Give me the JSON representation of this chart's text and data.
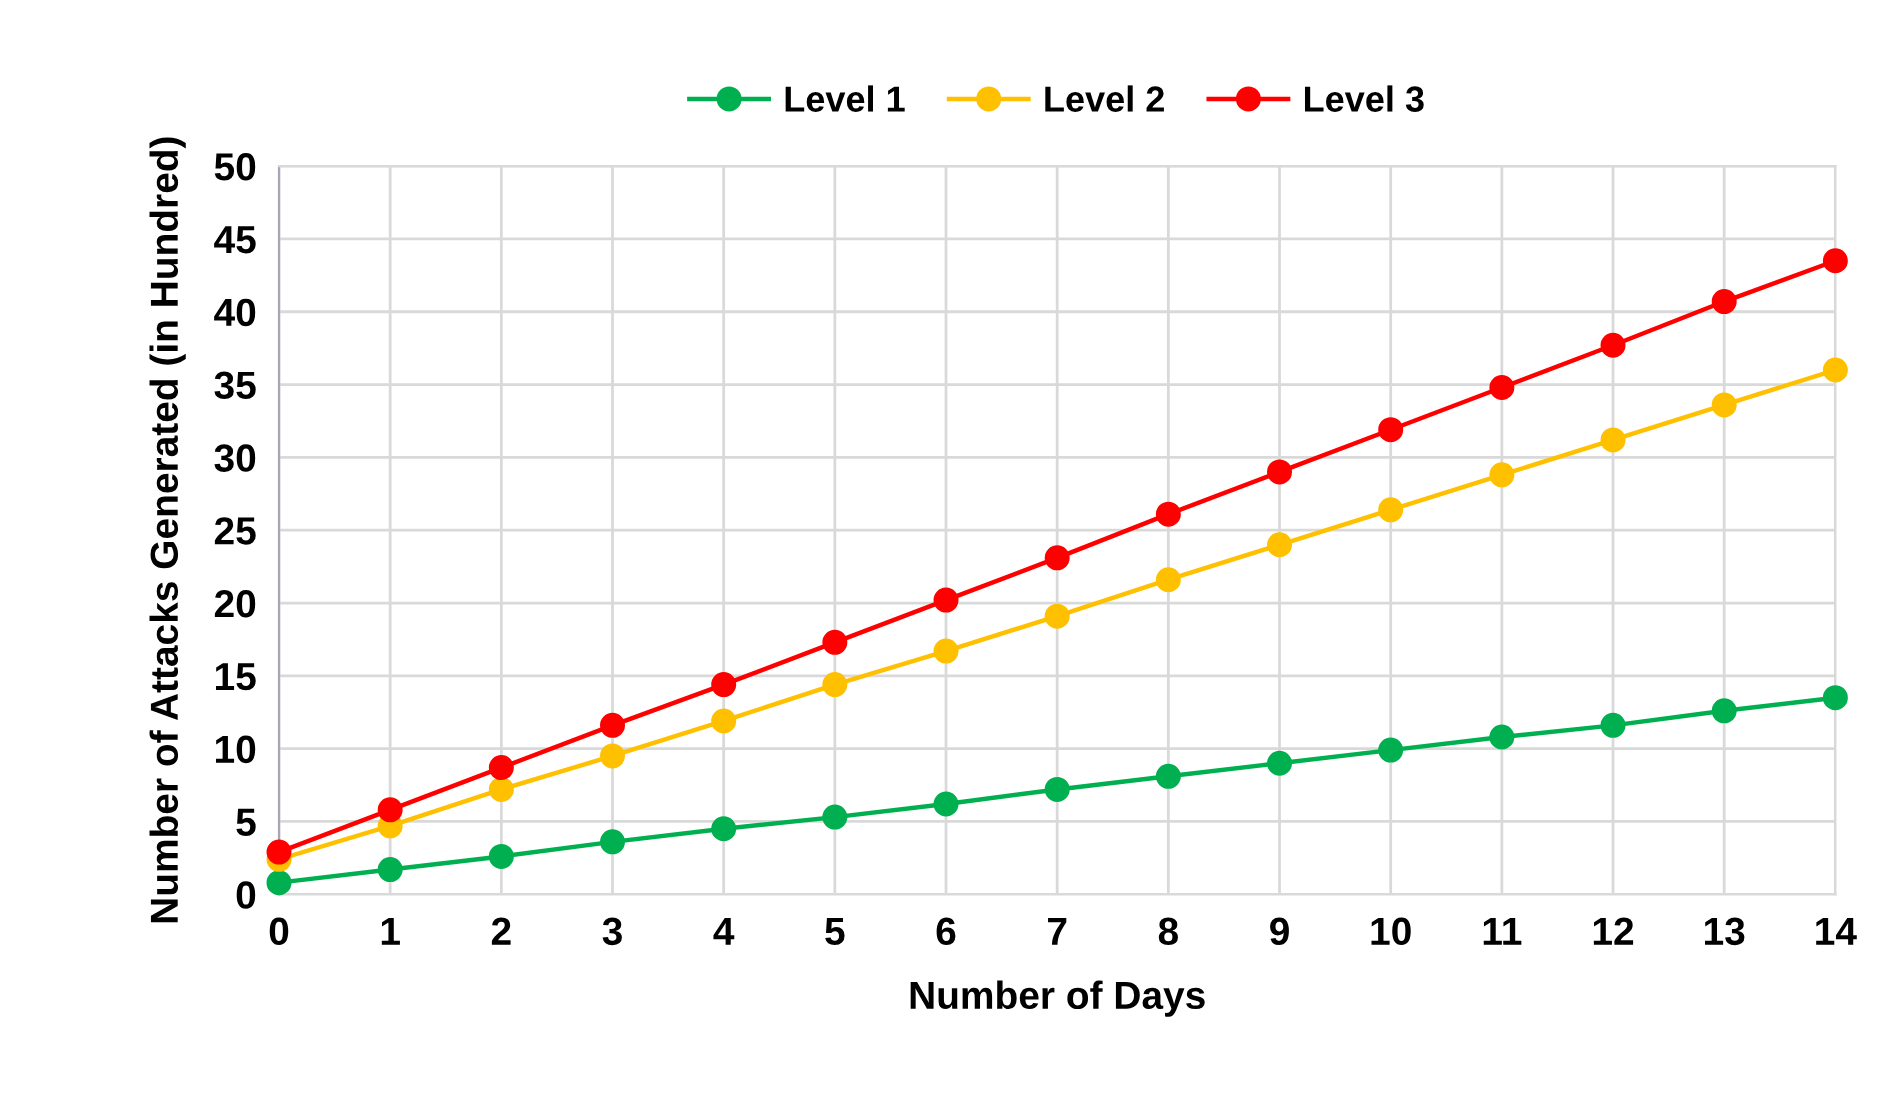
{
  "chart_data": {
    "type": "line",
    "xlabel": "Number of Days",
    "ylabel": "Number of Attacks Generated (in Hundred)",
    "x": [
      0,
      1,
      2,
      3,
      4,
      5,
      6,
      7,
      8,
      9,
      10,
      11,
      12,
      13,
      14
    ],
    "series": [
      {
        "name": "Level 1",
        "color": "#00b050",
        "values": [
          0.8,
          1.7,
          2.6,
          3.6,
          4.5,
          5.3,
          6.2,
          7.2,
          8.1,
          9.0,
          9.9,
          10.8,
          11.6,
          12.6,
          13.5
        ]
      },
      {
        "name": "Level 2",
        "color": "#ffc000",
        "values": [
          2.4,
          4.7,
          7.2,
          9.5,
          11.9,
          14.4,
          16.7,
          19.1,
          21.6,
          24.0,
          26.4,
          28.8,
          31.2,
          33.6,
          36.0
        ]
      },
      {
        "name": "Level 3",
        "color": "#ff0000",
        "values": [
          2.9,
          5.8,
          8.7,
          11.6,
          14.4,
          17.3,
          20.2,
          23.1,
          26.1,
          29.0,
          31.9,
          34.8,
          37.7,
          40.7,
          43.5
        ]
      }
    ],
    "xlim": [
      0,
      14
    ],
    "xticks": [
      0,
      1,
      2,
      3,
      4,
      5,
      6,
      7,
      8,
      9,
      10,
      11,
      12,
      13,
      14
    ],
    "ylim": [
      0,
      50
    ],
    "yticks": [
      0,
      5,
      10,
      15,
      20,
      25,
      30,
      35,
      40,
      45,
      50
    ],
    "grid": true,
    "legend": "top",
    "marker": "circle",
    "line_style": "solid"
  }
}
